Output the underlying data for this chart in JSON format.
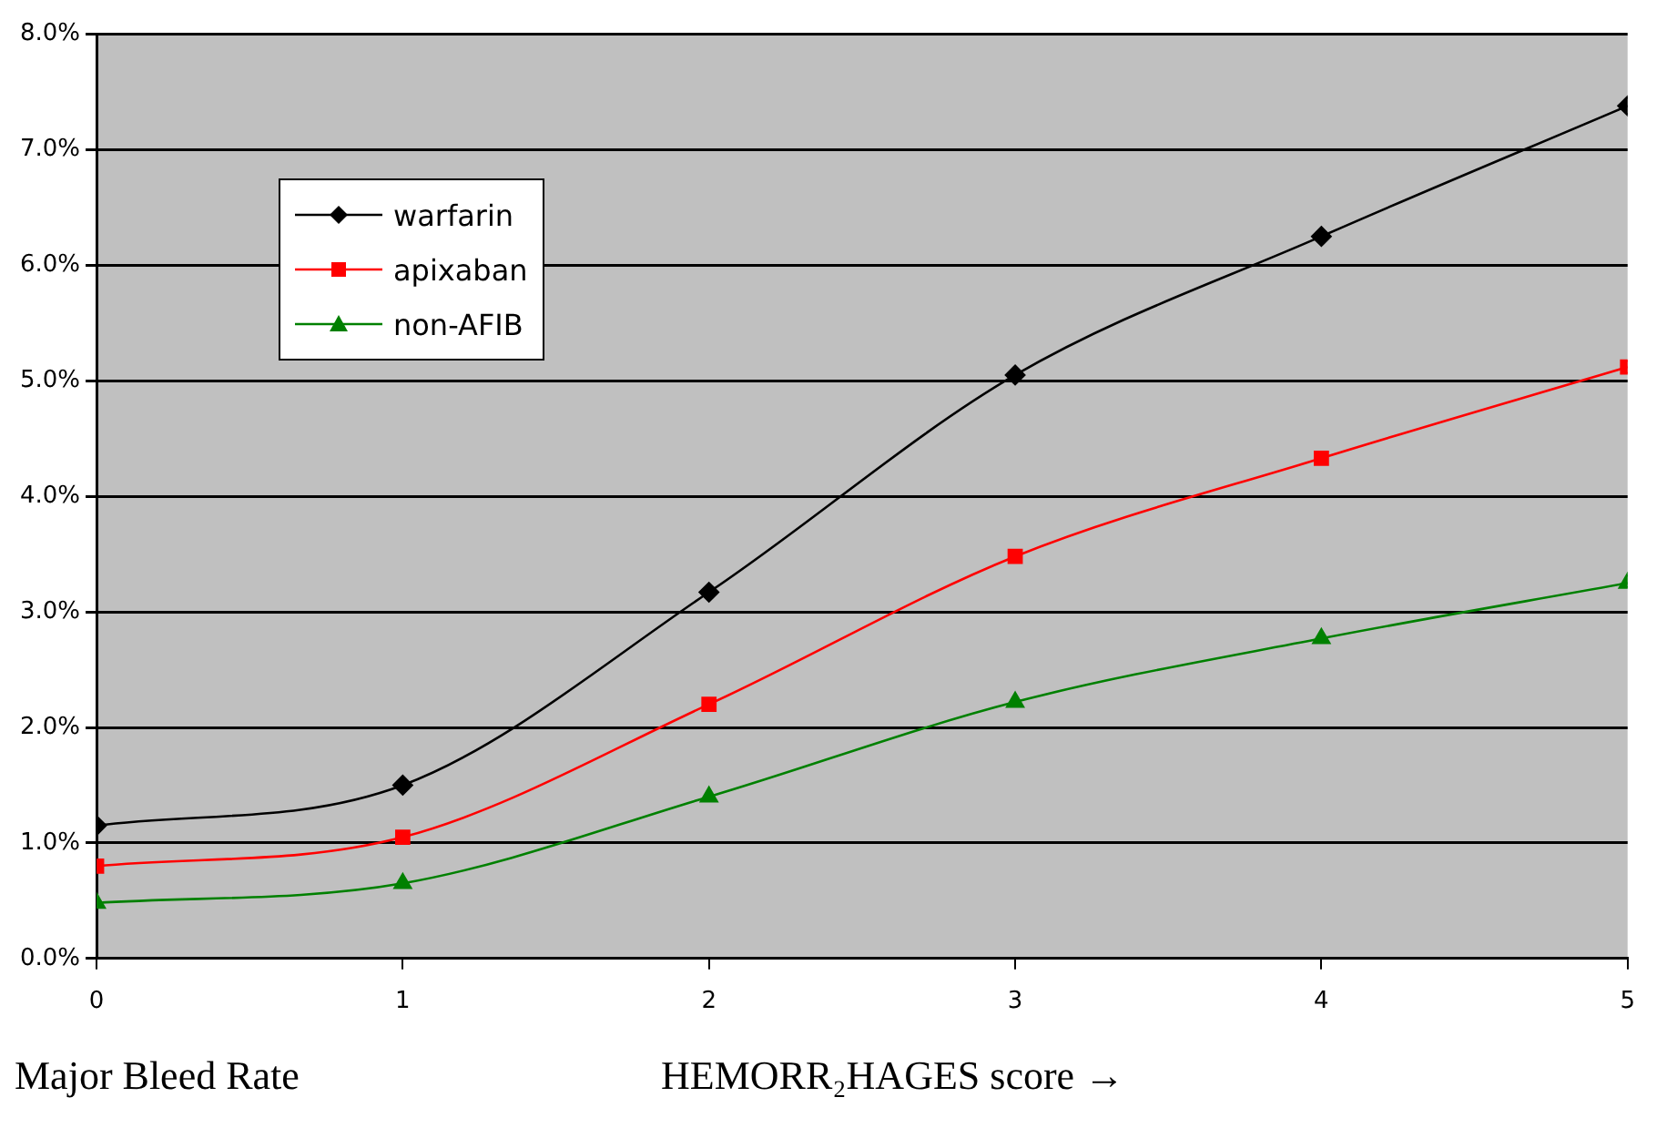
{
  "chart_data": {
    "type": "line",
    "xlabel": "HEMORR₂HAGES score →",
    "ylabel": "Major Bleed Rate",
    "x": [
      0,
      1,
      2,
      3,
      4,
      5
    ],
    "series": [
      {
        "name": "warfarin",
        "color": "#000000",
        "marker": "diamond",
        "values": [
          1.15,
          1.5,
          3.17,
          5.05,
          6.25,
          7.38
        ]
      },
      {
        "name": "apixaban",
        "color": "#ff0000",
        "marker": "square",
        "values": [
          0.8,
          1.05,
          2.2,
          3.48,
          4.33,
          5.12
        ]
      },
      {
        "name": "non-AFIB",
        "color": "#008000",
        "marker": "triangle",
        "values": [
          0.48,
          0.65,
          1.4,
          2.22,
          2.77,
          3.25
        ]
      }
    ],
    "xlim": [
      0,
      5
    ],
    "xticks": [
      0,
      1,
      2,
      3,
      4,
      5
    ],
    "ylim": [
      0,
      8
    ],
    "yticks": [
      {
        "value": 0,
        "label": "0.0%"
      },
      {
        "value": 1,
        "label": "1.0%"
      },
      {
        "value": 2,
        "label": "2.0%"
      },
      {
        "value": 3,
        "label": "3.0%"
      },
      {
        "value": 4,
        "label": "4.0%"
      },
      {
        "value": 5,
        "label": "5.0%"
      },
      {
        "value": 6,
        "label": "6.0%"
      },
      {
        "value": 7,
        "label": "7.0%"
      },
      {
        "value": 8,
        "label": "8.0%"
      }
    ],
    "grid": "y",
    "legend": "top left",
    "line_style": "solid"
  }
}
